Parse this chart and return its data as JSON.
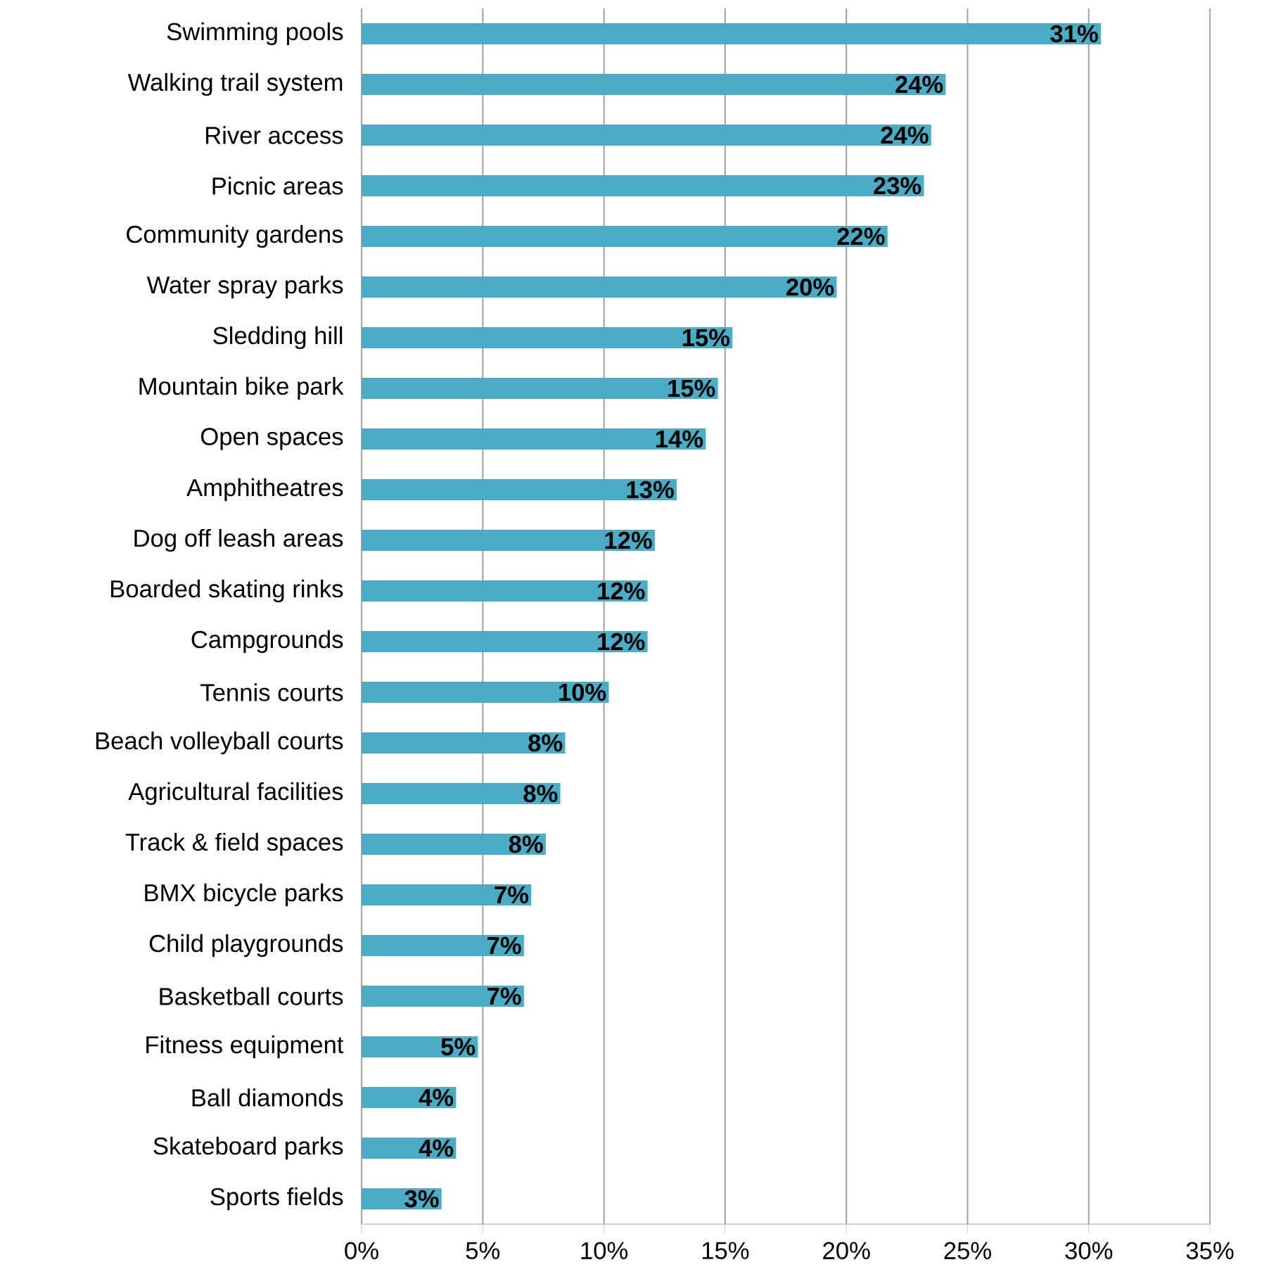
{
  "chart_data": {
    "type": "bar",
    "orientation": "horizontal",
    "color": "#4bacc6",
    "grid": "x",
    "xlim": [
      0,
      35
    ],
    "xticks": [
      {
        "value": 0,
        "label": "0%"
      },
      {
        "value": 5,
        "label": "5%"
      },
      {
        "value": 10,
        "label": "10%"
      },
      {
        "value": 15,
        "label": "15%"
      },
      {
        "value": 20,
        "label": "20%"
      },
      {
        "value": 25,
        "label": "25%"
      },
      {
        "value": 30,
        "label": "30%"
      },
      {
        "value": 35,
        "label": "35%"
      }
    ],
    "categories": [
      "Swimming pools",
      "Walking trail system",
      "River access",
      "Picnic areas",
      "Community gardens",
      "Water spray parks",
      "Sledding hill",
      "Mountain bike park",
      "Open spaces",
      "Amphitheatres",
      "Dog off leash areas",
      "Boarded skating rinks",
      "Campgrounds",
      "Tennis courts",
      "Beach volleyball courts",
      "Agricultural facilities",
      "Track & field spaces",
      "BMX bicycle parks",
      "Child playgrounds",
      "Basketball courts",
      "Fitness equipment",
      "Ball diamonds",
      "Skateboard parks",
      "Sports fields"
    ],
    "values": [
      30.5,
      24.1,
      23.5,
      23.2,
      21.7,
      19.6,
      15.3,
      14.7,
      14.2,
      13.0,
      12.1,
      11.8,
      11.8,
      10.2,
      8.4,
      8.2,
      7.6,
      7.0,
      6.7,
      6.7,
      4.8,
      3.9,
      3.9,
      3.3
    ],
    "value_labels": [
      "31%",
      "24%",
      "24%",
      "23%",
      "22%",
      "20%",
      "15%",
      "15%",
      "14%",
      "13%",
      "12%",
      "12%",
      "12%",
      "10%",
      "8%",
      "8%",
      "8%",
      "7%",
      "7%",
      "7%",
      "5%",
      "4%",
      "4%",
      "3%"
    ]
  }
}
